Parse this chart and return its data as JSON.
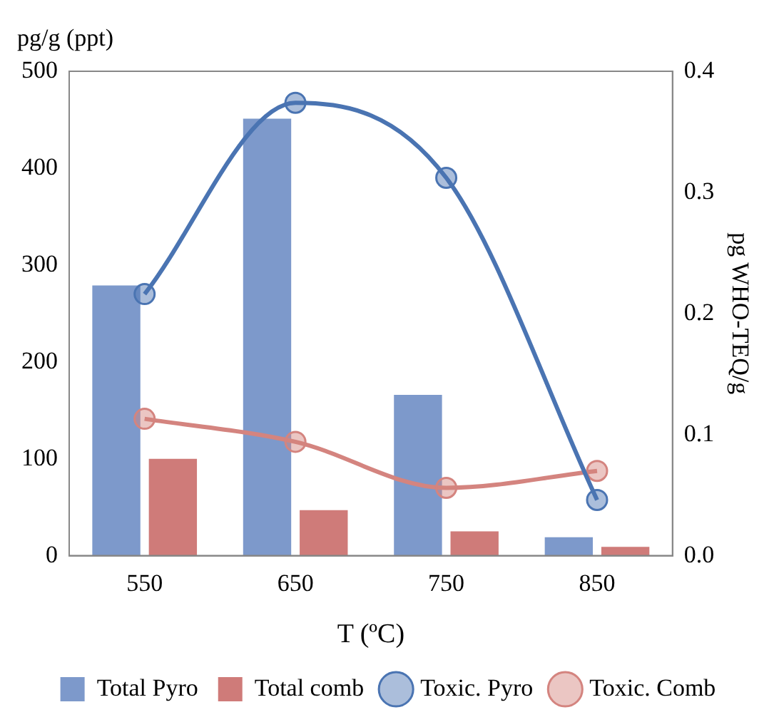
{
  "chart_data": {
    "type": "bar",
    "xlabel": "T (ºC)",
    "ylabel": "pg/g (ppt)",
    "y2label": "pg WHO-TEQ/g",
    "categories": [
      "550",
      "650",
      "750",
      "850"
    ],
    "series": [
      {
        "name": "Total Pyro",
        "color": "#7d99cb",
        "values": [
          279,
          451,
          166,
          19
        ]
      },
      {
        "name": "Total comb",
        "color": "#cf7b79",
        "values": [
          100,
          47,
          25,
          9
        ]
      },
      {
        "name": "Toxic. Pyro",
        "type": "line",
        "axis": "y2",
        "color": "#4a74b2",
        "marker": "circle",
        "values": [
          0.216,
          0.374,
          0.312,
          0.046
        ]
      },
      {
        "name": "Toxic. Comb",
        "type": "line",
        "axis": "y2",
        "color": "#d4847f",
        "marker": "circle",
        "values": [
          0.113,
          0.094,
          0.056,
          0.07
        ]
      }
    ],
    "ylim": [
      0,
      500
    ],
    "yticks": [
      0,
      100,
      200,
      300,
      400,
      500
    ],
    "y2lim": [
      0,
      0.4
    ],
    "y2ticks": [
      {
        "value": 0,
        "label": "0.0"
      },
      {
        "value": 0.1,
        "label": "0.1"
      },
      {
        "value": 0.2,
        "label": "0.2"
      },
      {
        "value": 0.3,
        "label": "0.3"
      },
      {
        "value": 0.4,
        "label": "0.4"
      }
    ],
    "grid": false,
    "legend": "bottom"
  }
}
